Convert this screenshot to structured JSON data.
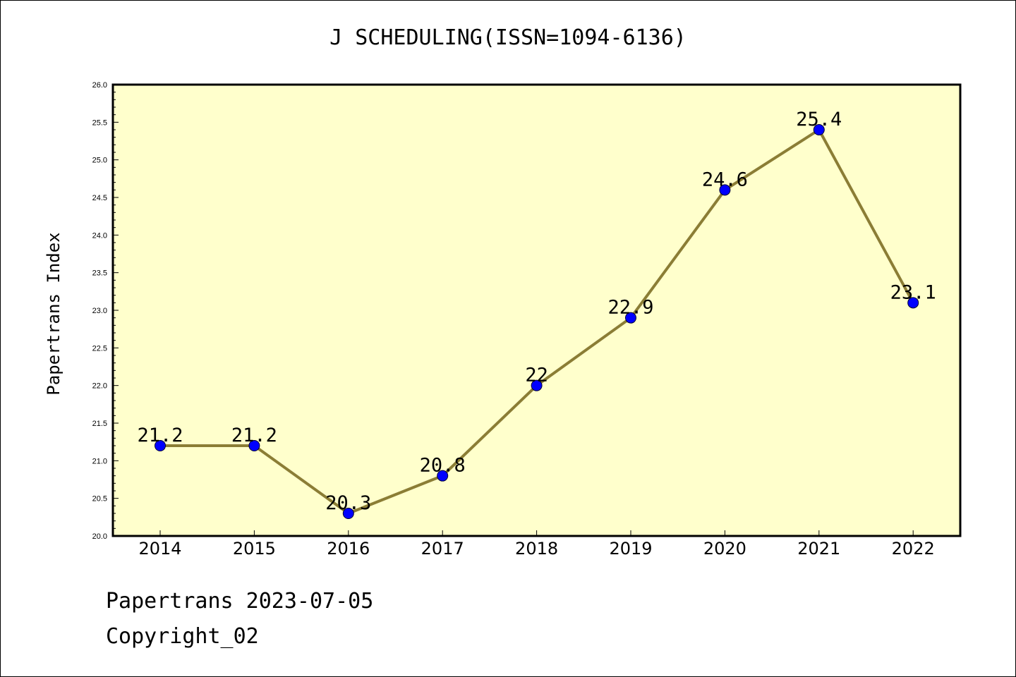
{
  "title": "J SCHEDULING(ISSN=1094-6136)",
  "footer": {
    "line1": "Papertrans 2023-07-05",
    "line2": "Copyright_02"
  },
  "colors": {
    "plot_background": "#ffffcc",
    "line": "#8b7d35",
    "marker": "#0000ff"
  },
  "chart_data": {
    "type": "line",
    "title": "J SCHEDULING(ISSN=1094-6136)",
    "xlabel": "",
    "ylabel": "Papertrans Index",
    "categories": [
      "2014",
      "2015",
      "2016",
      "2017",
      "2018",
      "2019",
      "2020",
      "2021",
      "2022"
    ],
    "values": [
      21.2,
      21.2,
      20.3,
      20.8,
      22,
      22.9,
      24.6,
      25.4,
      23.1
    ],
    "data_labels": [
      "21.2",
      "21.2",
      "20.3",
      "20.8",
      "22",
      "22.9",
      "24.6",
      "25.4",
      "23.1"
    ],
    "ylim": [
      20.0,
      26.0
    ],
    "yticks": [
      "20.0",
      "20.5",
      "21.0",
      "21.5",
      "22.0",
      "22.5",
      "23.0",
      "23.5",
      "24.0",
      "24.5",
      "25.0",
      "25.5",
      "26.0"
    ],
    "grid": false,
    "legend": "none"
  }
}
